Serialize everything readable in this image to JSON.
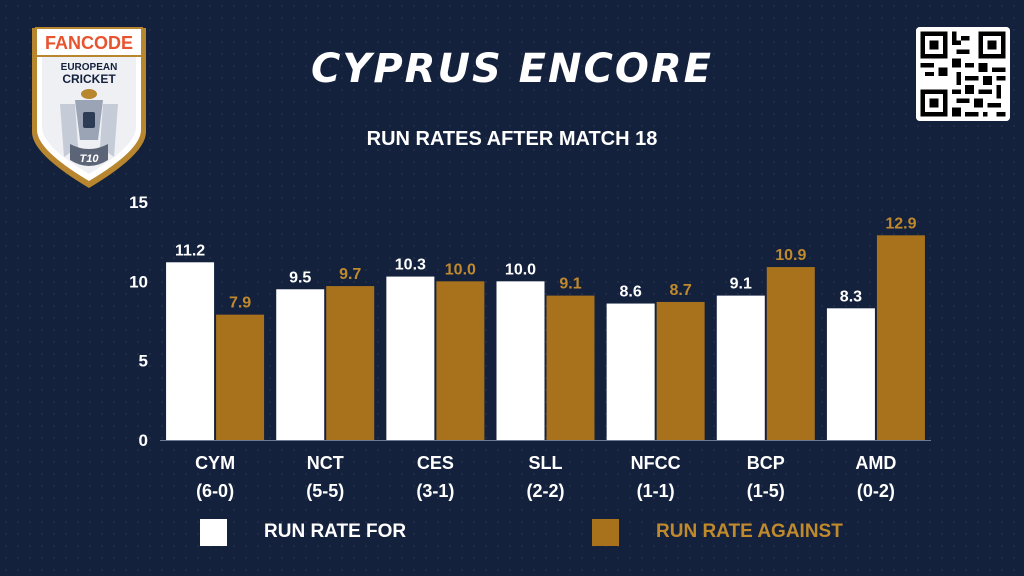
{
  "header": {
    "title": "CYPRUS ENCORE",
    "subtitle": "RUN RATES AFTER MATCH 18"
  },
  "logo": {
    "brand": "FANCODE",
    "line1": "EUROPEAN",
    "line2": "CRICKET",
    "badge": "T10"
  },
  "qr_icon": "qr-code-icon",
  "colors": {
    "background": "#14213d",
    "run_rate_for": "#ffffff",
    "run_rate_against": "#a8711c",
    "against_label": "#c08a2c"
  },
  "chart_data": {
    "type": "bar",
    "title": "RUN RATES AFTER MATCH 18",
    "categories": [
      "CYM",
      "NCT",
      "CES",
      "SLL",
      "NFCC",
      "BCP",
      "AMD"
    ],
    "category_records": [
      "(6-0)",
      "(5-5)",
      "(3-1)",
      "(2-2)",
      "(1-1)",
      "(1-5)",
      "(0-2)"
    ],
    "series": [
      {
        "name": "RUN RATE FOR",
        "values": [
          11.2,
          9.5,
          10.3,
          10.0,
          8.6,
          9.1,
          8.3
        ],
        "labels": [
          "11.2",
          "9.5",
          "10.3",
          "10.0",
          "8.6",
          "9.1",
          "8.3"
        ]
      },
      {
        "name": "RUN RATE AGAINST",
        "values": [
          7.9,
          9.7,
          10.0,
          9.1,
          8.7,
          10.9,
          12.9
        ],
        "labels": [
          "7.9",
          "9.7",
          "10.0",
          "9.1",
          "8.7",
          "10.9",
          "12.9"
        ]
      }
    ],
    "ylim": [
      0,
      15
    ],
    "yticks": [
      0,
      5,
      10,
      15
    ],
    "grid": false,
    "legend_position": "bottom"
  }
}
